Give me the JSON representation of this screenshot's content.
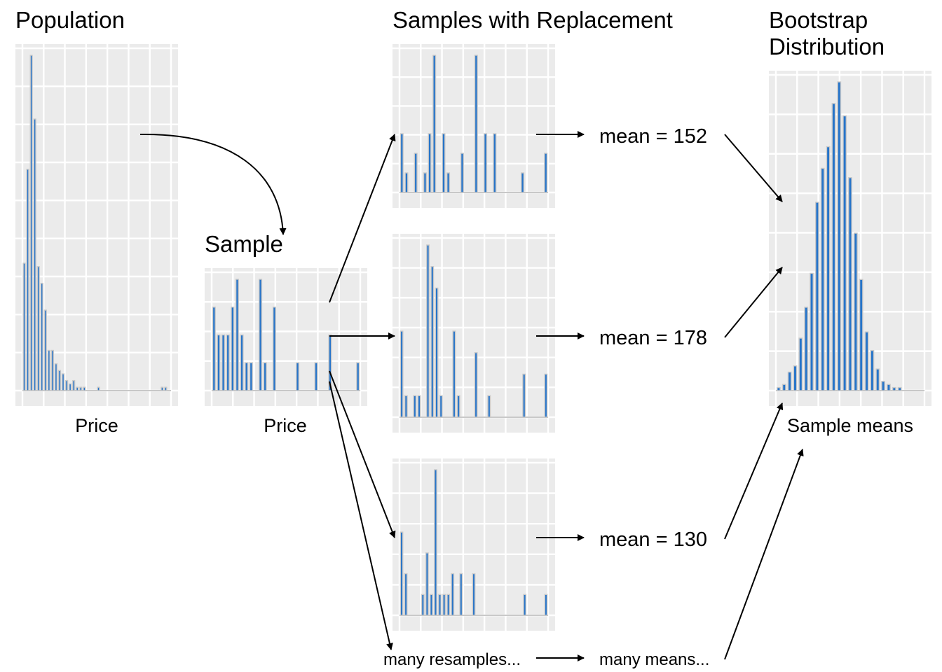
{
  "titles": {
    "population": "Population",
    "sample": "Sample",
    "resamples": "Samples with Replacement",
    "bootstrap_line1": "Bootstrap",
    "bootstrap_line2": "Distribution"
  },
  "axis_labels": {
    "population": "Price",
    "sample": "Price",
    "bootstrap": "Sample means"
  },
  "means": {
    "resample_1": "mean = 152",
    "resample_2": "mean = 178",
    "resample_3": "mean = 130",
    "many_means": "many means..."
  },
  "many_resamples": "many resamples...",
  "colors": {
    "bar_fill": "#2674c9",
    "bar_outline": "#c9c9c9",
    "panel_background": "#ebebeb",
    "grid": "#ffffff"
  },
  "chart_data": [
    {
      "id": "population",
      "type": "bar",
      "note": "histogram; y scale 0-1 relative to tallest bar",
      "values": [
        0.38,
        0.66,
        1.0,
        0.81,
        0.37,
        0.32,
        0.24,
        0.12,
        0.12,
        0.08,
        0.06,
        0.05,
        0.03,
        0.02,
        0.03,
        0.01,
        0.01,
        0.01,
        0.0,
        0.0,
        0.0,
        0.01,
        0.0,
        0.0,
        0.0,
        0.0,
        0.0,
        0.0,
        0.0,
        0.0,
        0.0,
        0.0,
        0.0,
        0.0,
        0.0,
        0.0,
        0.0,
        0.0,
        0.0,
        0.01,
        0.01,
        0.0
      ]
    },
    {
      "id": "sample",
      "type": "bar",
      "note": "histogram of sample counts",
      "values": [
        3,
        2,
        2,
        2,
        3,
        4,
        2,
        1,
        1,
        0,
        4,
        1,
        0,
        3,
        0,
        0,
        0,
        0,
        1,
        0,
        0,
        0,
        1,
        0,
        0,
        2,
        0,
        0,
        0,
        0,
        0,
        1
      ]
    },
    {
      "id": "resample_1",
      "type": "bar",
      "values": [
        3,
        1,
        0,
        2,
        0,
        1,
        3,
        7,
        0,
        3,
        1,
        0,
        0,
        2,
        0,
        0,
        7,
        0,
        3,
        0,
        3,
        0,
        0,
        0,
        0,
        0,
        1,
        0,
        0,
        0,
        0,
        2
      ]
    },
    {
      "id": "resample_2",
      "type": "bar",
      "values": [
        4,
        1,
        0,
        1,
        1,
        0,
        8,
        7,
        6,
        1,
        0,
        0,
        4,
        1,
        0,
        0,
        0,
        3,
        0,
        0,
        1,
        0,
        0,
        0,
        0,
        0,
        0,
        0,
        2,
        0,
        0,
        0,
        0,
        2
      ]
    },
    {
      "id": "resample_3",
      "type": "bar",
      "values": [
        4,
        2,
        0,
        0,
        0,
        1,
        3,
        1,
        7,
        1,
        1,
        1,
        2,
        0,
        2,
        0,
        0,
        2,
        0,
        0,
        0,
        0,
        0,
        0,
        0,
        0,
        0,
        0,
        0,
        1,
        0,
        0,
        0,
        0,
        1
      ]
    },
    {
      "id": "bootstrap",
      "type": "bar",
      "note": "histogram of bootstrap sample means; y relative to tallest bar",
      "values": [
        0.01,
        0.02,
        0.06,
        0.08,
        0.17,
        0.27,
        0.38,
        0.61,
        0.72,
        0.79,
        0.93,
        1.0,
        0.89,
        0.69,
        0.51,
        0.36,
        0.19,
        0.13,
        0.07,
        0.03,
        0.02,
        0.01,
        0.01,
        0.0,
        0.0,
        0.0,
        0.0
      ]
    }
  ]
}
